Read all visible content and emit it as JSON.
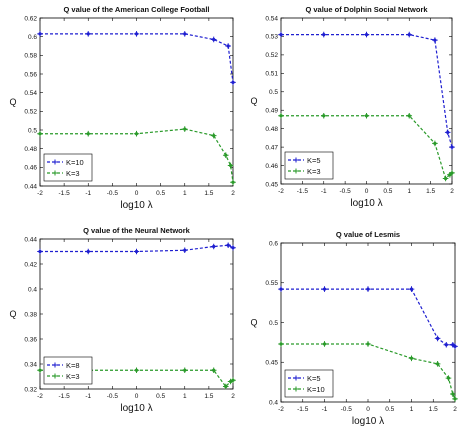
{
  "chart_data": [
    {
      "type": "line",
      "title": "Q value of the American College Football",
      "xlabel": "log10 λ",
      "ylabel": "Q",
      "xlim": [
        -2,
        2
      ],
      "ylim": [
        0.44,
        0.62
      ],
      "xticks": [
        "-2",
        "-1.5",
        "-1",
        "-0.5",
        "0",
        "0.5",
        "1",
        "1.5",
        "2"
      ],
      "yticks": [
        "0.44",
        "0.46",
        "0.48",
        "0.5",
        "0.52",
        "0.54",
        "0.56",
        "0.58",
        "0.6",
        "0.62"
      ],
      "legend_position": "bottom-left",
      "series": [
        {
          "name": "K=10",
          "color": "#1f1fd0",
          "x": [
            -2,
            -1,
            0,
            1,
            1.6,
            1.9,
            2
          ],
          "y": [
            0.603,
            0.603,
            0.603,
            0.603,
            0.597,
            0.59,
            0.551
          ]
        },
        {
          "name": "K=3",
          "color": "#2a9a2a",
          "x": [
            -2,
            -1,
            0,
            1,
            1.6,
            1.85,
            1.95,
            2
          ],
          "y": [
            0.496,
            0.496,
            0.496,
            0.501,
            0.494,
            0.473,
            0.462,
            0.444
          ]
        }
      ]
    },
    {
      "type": "line",
      "title": "Q value of Dolphin Social Network",
      "xlabel": "log10 λ",
      "ylabel": "Q",
      "xlim": [
        -2,
        2
      ],
      "ylim": [
        0.45,
        0.54
      ],
      "xticks": [
        "-2",
        "-1.5",
        "-1",
        "-0.5",
        "0",
        "0.5",
        "1",
        "1.5",
        "2"
      ],
      "yticks": [
        "0.45",
        "0.46",
        "0.47",
        "0.48",
        "0.49",
        "0.5",
        "0.51",
        "0.52",
        "0.53",
        "0.54"
      ],
      "legend_position": "bottom-left",
      "series": [
        {
          "name": "K=5",
          "color": "#1f1fd0",
          "x": [
            -2,
            -1,
            0,
            1,
            1.6,
            1.9,
            2
          ],
          "y": [
            0.531,
            0.531,
            0.531,
            0.531,
            0.528,
            0.478,
            0.47
          ]
        },
        {
          "name": "K=3",
          "color": "#2a9a2a",
          "x": [
            -2,
            -1,
            0,
            1,
            1.6,
            1.85,
            1.95,
            2
          ],
          "y": [
            0.487,
            0.487,
            0.487,
            0.487,
            0.472,
            0.453,
            0.455,
            0.456
          ]
        }
      ]
    },
    {
      "type": "line",
      "title": "Q value of the Neural Network",
      "xlabel": "log10 λ",
      "ylabel": "Q",
      "xlim": [
        -2,
        2
      ],
      "ylim": [
        0.32,
        0.44
      ],
      "xticks": [
        "-2",
        "-1.5",
        "-1",
        "-0.5",
        "0",
        "0.5",
        "1",
        "1.5",
        "2"
      ],
      "yticks": [
        "0.32",
        "0.34",
        "0.36",
        "0.38",
        "0.4",
        "0.42",
        "0.44"
      ],
      "legend_position": "bottom-left",
      "series": [
        {
          "name": "K=8",
          "color": "#1f1fd0",
          "x": [
            -2,
            -1,
            0,
            1,
            1.6,
            1.9,
            2
          ],
          "y": [
            0.43,
            0.43,
            0.43,
            0.431,
            0.434,
            0.435,
            0.433
          ]
        },
        {
          "name": "K=3",
          "color": "#2a9a2a",
          "x": [
            -2,
            -1,
            0,
            1,
            1.6,
            1.85,
            1.95,
            2
          ],
          "y": [
            0.335,
            0.335,
            0.335,
            0.335,
            0.335,
            0.322,
            0.326,
            0.327
          ]
        }
      ]
    },
    {
      "type": "line",
      "title": "Q value of Lesmis",
      "xlabel": "log10 λ",
      "ylabel": "Q",
      "xlim": [
        -2,
        2
      ],
      "ylim": [
        0.4,
        0.6
      ],
      "xticks": [
        "-2",
        "-1.5",
        "-1",
        "-0.5",
        "0",
        "0.5",
        "1",
        "1.5",
        "2"
      ],
      "yticks": [
        "0.4",
        "0.45",
        "0.5",
        "0.55",
        "0.6"
      ],
      "legend_position": "bottom-left",
      "series": [
        {
          "name": "K=5",
          "color": "#1f1fd0",
          "x": [
            -2,
            -1,
            0,
            1,
            1.6,
            1.8,
            1.95,
            2
          ],
          "y": [
            0.542,
            0.542,
            0.542,
            0.542,
            0.48,
            0.472,
            0.472,
            0.47
          ]
        },
        {
          "name": "K=10",
          "color": "#2a9a2a",
          "x": [
            -2,
            -1,
            0,
            1,
            1.6,
            1.85,
            1.95,
            2
          ],
          "y": [
            0.473,
            0.473,
            0.473,
            0.455,
            0.448,
            0.43,
            0.41,
            0.404
          ]
        }
      ]
    }
  ]
}
